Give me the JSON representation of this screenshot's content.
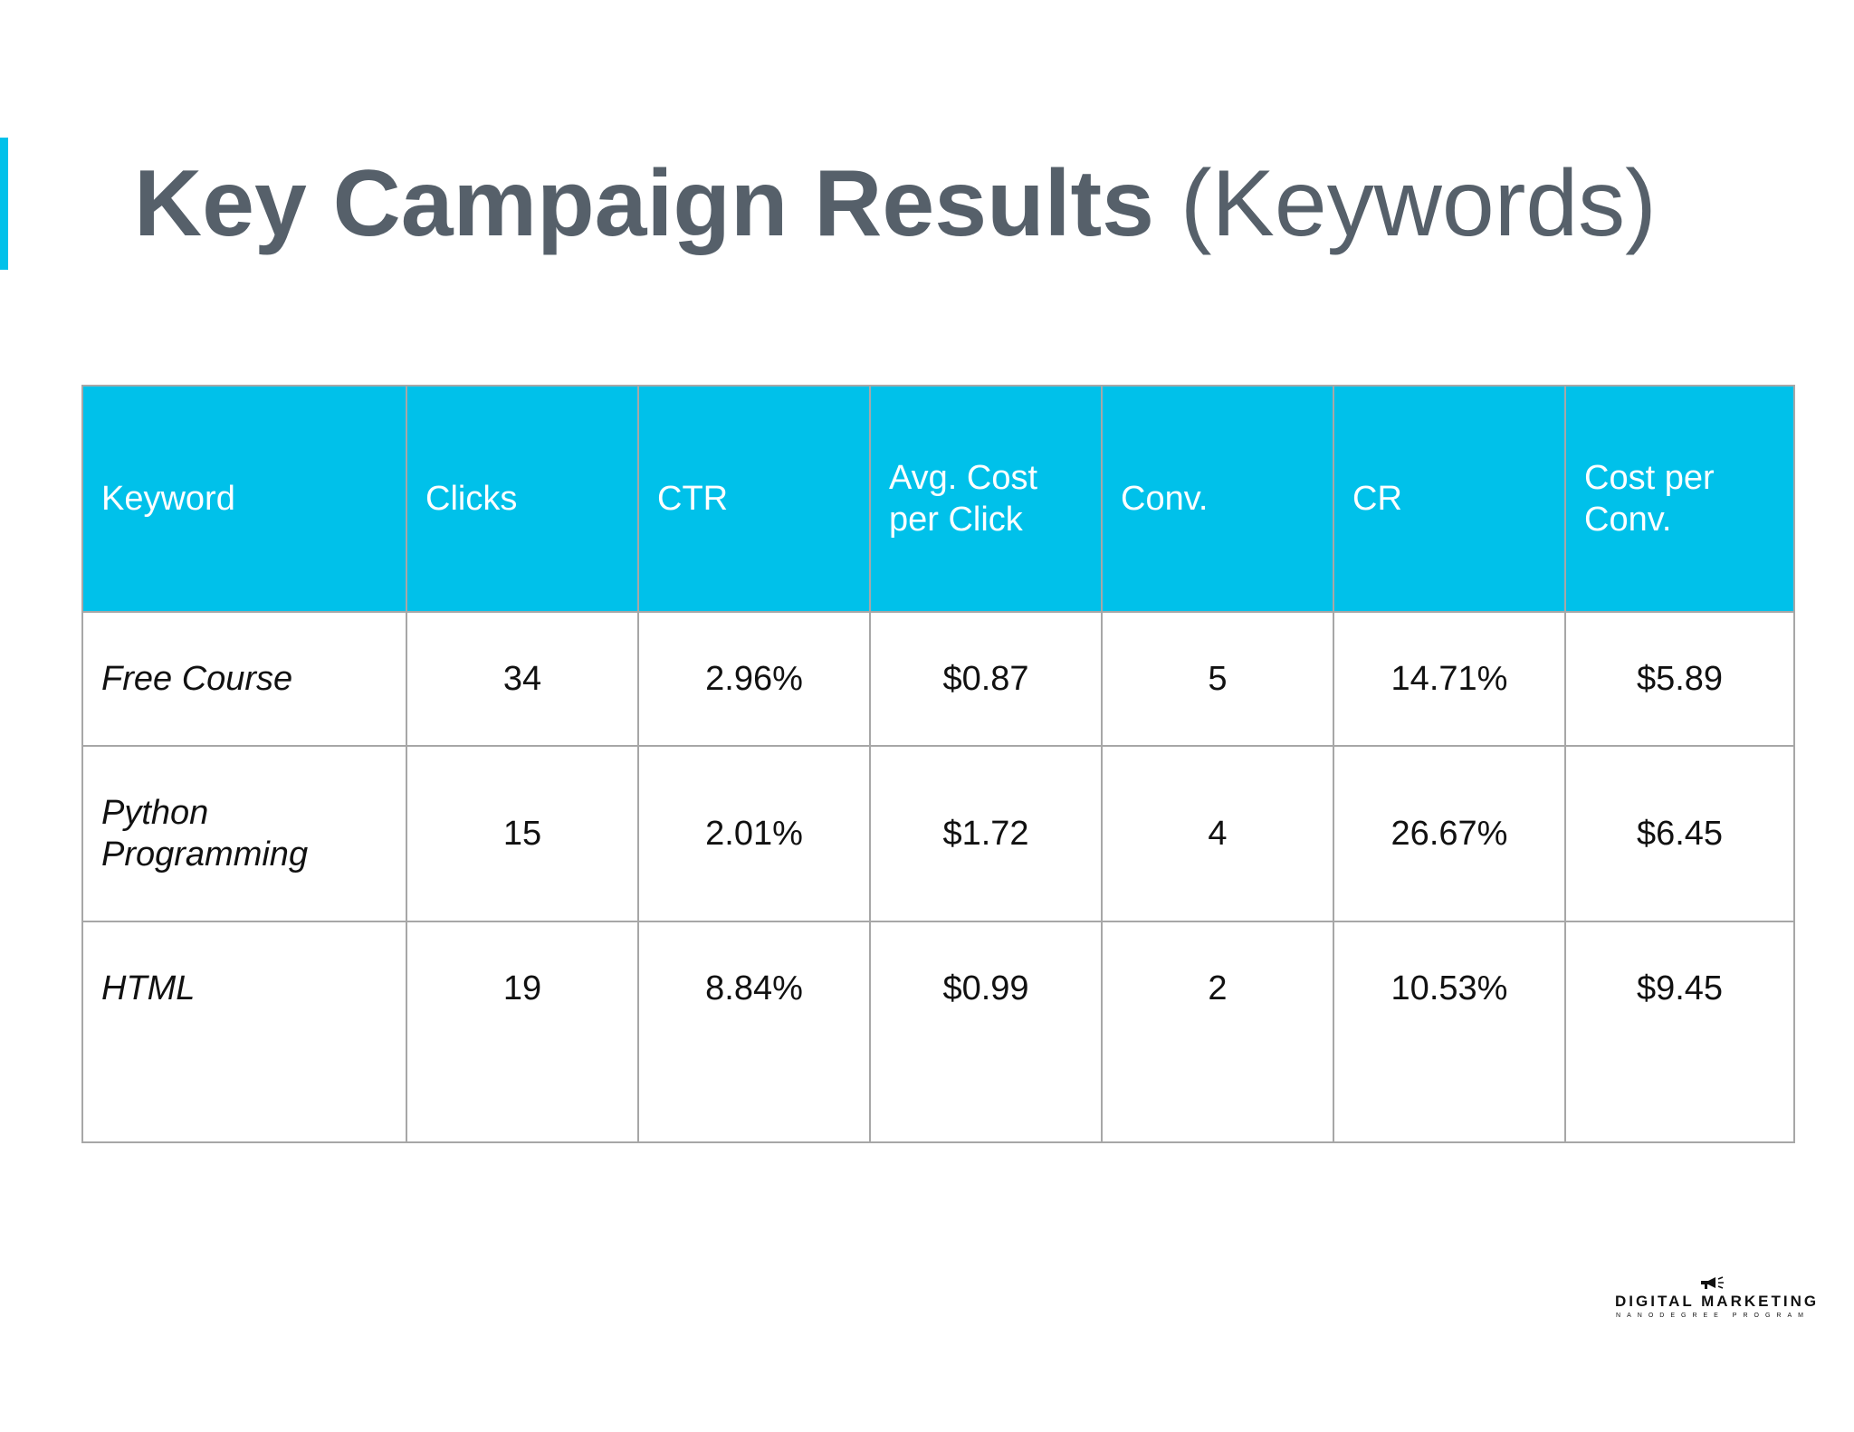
{
  "slide": {
    "title_bold": "Key Campaign Results",
    "title_rest": "(Keywords)"
  },
  "table": {
    "headers": [
      "Keyword",
      "Clicks",
      "CTR",
      "Avg. Cost per Click",
      "Conv.",
      "CR",
      "Cost per Conv."
    ],
    "rows": [
      [
        "Free Course",
        "34",
        "2.96%",
        "$0.87",
        "5",
        "14.71%",
        "$5.89"
      ],
      [
        "Python Programming",
        "15",
        "2.01%",
        "$1.72",
        "4",
        "26.67%",
        "$6.45"
      ],
      [
        "HTML",
        "19",
        "8.84%",
        "$0.99",
        "2",
        "10.53%",
        "$9.45"
      ]
    ]
  },
  "logo": {
    "line1": "DIGITAL MARKETING",
    "line2": "NANODEGREE PROGRAM",
    "icon": "megaphone-icon"
  },
  "colors": {
    "accent": "#00c1ea",
    "title": "#56606a",
    "border": "#a7a7a7"
  }
}
